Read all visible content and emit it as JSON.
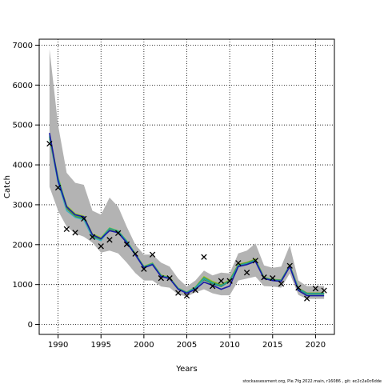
{
  "chart_data": {
    "type": "line",
    "xlabel": "Years",
    "ylabel": "Catch",
    "xlim": [
      1987.8,
      2022.2
    ],
    "ylim": [
      -250,
      7150
    ],
    "x_ticks": [
      1990,
      1995,
      2000,
      2005,
      2010,
      2015,
      2020
    ],
    "y_ticks": [
      0,
      1000,
      2000,
      3000,
      4000,
      5000,
      6000,
      7000
    ],
    "grid": true,
    "footer": "stockassessment.org, Ple.7fg.2022.main, r16086 , git: ec2c2a0c6dde",
    "colors": {
      "band": "#b3b3b3",
      "main_line": "#1a1aa6",
      "retro_lines": [
        "#2e8b57",
        "#40b0c0",
        "#9acd32",
        "#6a9a2a",
        "#20a0a0"
      ],
      "observed": "#000000"
    },
    "years": [
      1989,
      1990,
      1991,
      1992,
      1993,
      1994,
      1995,
      1996,
      1997,
      1998,
      1999,
      2000,
      2001,
      2002,
      2003,
      2004,
      2005,
      2006,
      2007,
      2008,
      2009,
      2010,
      2011,
      2012,
      2013,
      2014,
      2015,
      2016,
      2017,
      2018,
      2019,
      2020,
      2021
    ],
    "band_upper": [
      6900,
      5000,
      3800,
      3550,
      3500,
      2850,
      2750,
      3180,
      2950,
      2450,
      2000,
      1750,
      1750,
      1550,
      1450,
      1150,
      950,
      1100,
      1350,
      1230,
      1300,
      1280,
      1780,
      1850,
      2030,
      1480,
      1420,
      1450,
      1980,
      1100,
      960,
      960,
      960
    ],
    "band_lower": [
      3450,
      2850,
      2450,
      2280,
      2200,
      2050,
      1800,
      1850,
      1780,
      1550,
      1290,
      1100,
      1100,
      950,
      920,
      750,
      700,
      800,
      880,
      780,
      730,
      730,
      1100,
      1150,
      1200,
      960,
      950,
      920,
      1280,
      740,
      640,
      640,
      640
    ],
    "series": [
      {
        "name": "",
        "values": [
          4800,
          3600,
          2950,
          2750,
          2700,
          2250,
          2150,
          2350,
          2300,
          2050,
          1750,
          1420,
          1500,
          1200,
          1150,
          880,
          780,
          880,
          1060,
          980,
          880,
          960,
          1450,
          1500,
          1580,
          1150,
          1100,
          1080,
          1450,
          850,
          720,
          720,
          720
        ]
      }
    ],
    "retro_series": [
      [
        4700,
        3650,
        2900,
        2700,
        2650,
        2200,
        2120,
        2400,
        2330,
        2080,
        1760,
        1440,
        1520,
        1220,
        1160,
        900,
        800,
        920,
        1120,
        1020,
        950,
        1080,
        1470,
        1520,
        1600,
        1160,
        1110,
        1100,
        1470,
        880,
        760,
        760,
        760
      ],
      [
        4650,
        3550,
        2850,
        2680,
        2620,
        2180,
        2100,
        2380,
        2300,
        2050,
        1740,
        1420,
        1510,
        1210,
        1150,
        890,
        790,
        900,
        1150,
        1050,
        980,
        1100,
        1490,
        1540,
        1620,
        1170,
        1120,
        1110,
        1480,
        900,
        780,
        780,
        780
      ],
      [
        4750,
        3700,
        2980,
        2780,
        2720,
        2270,
        2180,
        2420,
        2350,
        2100,
        1780,
        1460,
        1540,
        1240,
        1180,
        910,
        810,
        940,
        1200,
        1080,
        1000,
        1120,
        1510,
        1560,
        1640,
        1180,
        1130,
        1120,
        1490,
        910,
        790,
        790,
        790
      ],
      [
        4680,
        3620,
        2920,
        2720,
        2680,
        2230,
        2140,
        2390,
        2320,
        2070,
        1770,
        1450,
        1530,
        1230,
        1170,
        905,
        805,
        930,
        1180,
        1060,
        990,
        1110,
        1500,
        1550,
        1630,
        1175,
        1125,
        1115,
        1485,
        905,
        785,
        785,
        785
      ],
      [
        4720,
        3670,
        2950,
        2740,
        2690,
        2240,
        2150,
        2410,
        2340,
        2090,
        1765,
        1445,
        1525,
        1225,
        1165,
        900,
        800,
        925,
        1160,
        1040,
        970,
        1090,
        1480,
        1530,
        1610,
        1165,
        1115,
        1105,
        1475,
        895,
        775,
        775,
        775
      ]
    ],
    "observed": {
      "x": [
        1989,
        1990,
        1991,
        1992,
        1993,
        1994,
        1995,
        1996,
        1997,
        1998,
        1999,
        2000,
        2001,
        2002,
        2003,
        2004,
        2005,
        2006,
        2007,
        2008,
        2009,
        2010,
        2011,
        2012,
        2013,
        2014,
        2015,
        2016,
        2017,
        2018,
        2019,
        2020,
        2021
      ],
      "y": [
        4530,
        3430,
        2390,
        2300,
        2650,
        2190,
        1960,
        2120,
        2290,
        2010,
        1770,
        1390,
        1750,
        1160,
        1160,
        790,
        720,
        860,
        1690,
        960,
        1090,
        1090,
        1540,
        1300,
        1600,
        1180,
        1160,
        1020,
        1470,
        920,
        650,
        900,
        850
      ]
    }
  }
}
